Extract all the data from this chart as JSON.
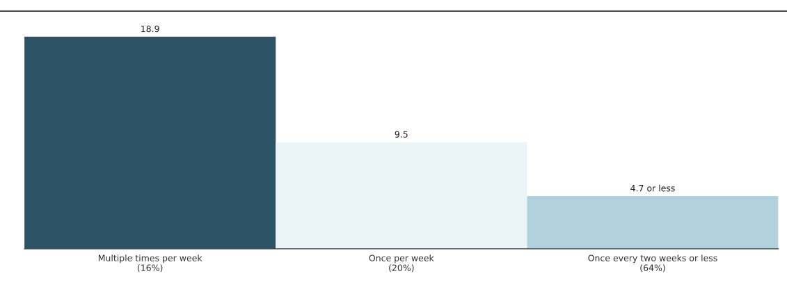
{
  "chart_data": {
    "type": "bar",
    "categories": [
      "Multiple times per week\n(16%)",
      "Once per week\n(20%)",
      "Once every two weeks or less\n(64%)"
    ],
    "ylim": [
      0,
      21
    ],
    "values": [
      18.9,
      9.5,
      4.7
    ],
    "colors": [
      "#2d5367",
      "#ebf4f7",
      "#b1d1dc"
    ],
    "value_labels": [
      "18.9",
      "9.5",
      "4.7 or less"
    ],
    "tick_labels": "x"
  }
}
